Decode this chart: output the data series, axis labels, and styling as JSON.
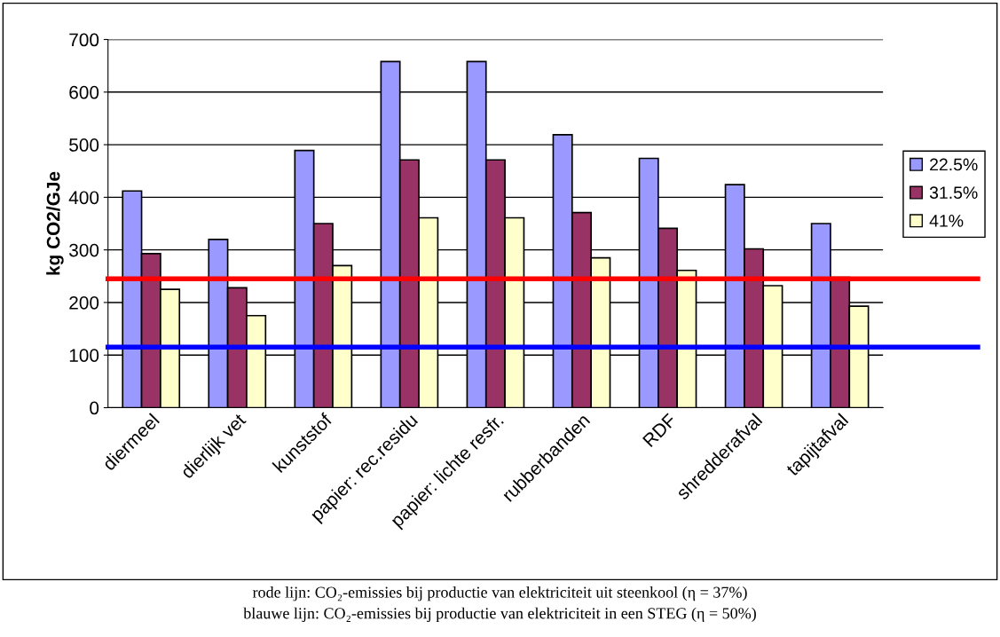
{
  "chart_data": {
    "type": "bar",
    "ylabel": "kg CO2/GJe",
    "categories": [
      "diermeel",
      "dierlijk vet",
      "kunststof",
      "papier: rec.residu",
      "papier: lichte resfr.",
      "rubberbanden",
      "RDF",
      "shredderafval",
      "tapijtafval"
    ],
    "series": [
      {
        "name": "22.5%",
        "color": "#9999ff",
        "values": [
          412,
          320,
          489,
          658,
          658,
          519,
          474,
          424,
          350
        ]
      },
      {
        "name": "31.5%",
        "color": "#993366",
        "values": [
          293,
          228,
          350,
          471,
          471,
          371,
          341,
          302,
          248
        ]
      },
      {
        "name": "41%",
        "color": "#ffffcc",
        "values": [
          225,
          175,
          270,
          361,
          361,
          285,
          261,
          232,
          193
        ]
      }
    ],
    "ylim": [
      0,
      700
    ],
    "yticks": [
      0,
      100,
      200,
      300,
      400,
      500,
      600,
      700
    ],
    "grid": "y",
    "legend": "right",
    "ref_lines": [
      {
        "axis": "y",
        "value": 245,
        "color": "#ff0000"
      },
      {
        "axis": "y",
        "value": 115,
        "color": "#0000ff"
      }
    ],
    "annotations": [
      "rode lijn: CO₂-emissies bij productie van elektriciteit uit steenkool (η = 37%)",
      "blauwe lijn: CO₂-emissies bij productie van elektriciteit in een STEG (η = 50%)"
    ]
  }
}
